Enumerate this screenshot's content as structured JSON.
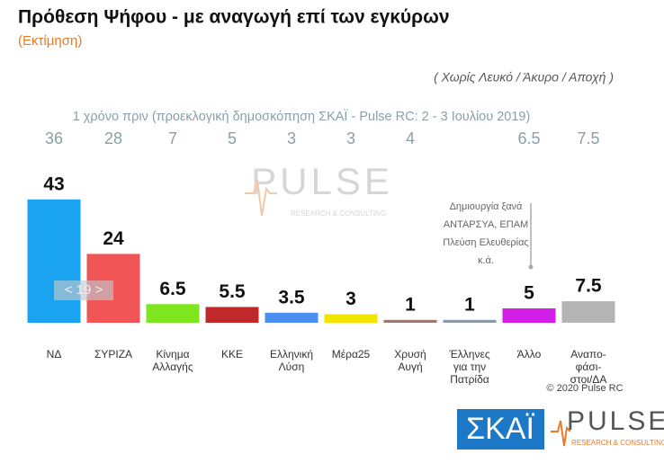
{
  "chart_data": {
    "type": "bar",
    "title": "Πρόθεση Ψήφου - με αναγωγή επί των εγκύρων",
    "subtitle": "(Εκτίμηση)",
    "note": "( Χωρίς Λευκό / Άκυρο / Αποχή )",
    "categories": [
      "ΝΔ",
      "ΣΥΡΙΖΑ",
      "Κίνημα\nΑλλαγής",
      "ΚΚΕ",
      "Ελληνική\nΛύση",
      "Μέρα25",
      "Χρυσή\nΑυγή",
      "Έλληνες\nγια την\nΠατρίδα",
      "Άλλο",
      "Αναπο-\nφάσι-\nστοι/ΔΑ"
    ],
    "values": [
      43,
      24,
      6.5,
      5.5,
      3.5,
      3,
      1,
      1,
      5,
      7.5
    ],
    "colors": [
      "#1aa3f0",
      "#f25555",
      "#7ee61e",
      "#c0282a",
      "#4a8ef0",
      "#f2e600",
      "#9a7a70",
      "#8a9aa8",
      "#d21ee6",
      "#b4b4b4"
    ],
    "previous_label": "1 χρόνο πριν (προεκλογική δημοσκόπηση ΣΚΑΪ - Pulse RC:  2 - 3 Ιουλίου 2019)",
    "previous_values": [
      36,
      28,
      7,
      5,
      3,
      3,
      4,
      null,
      6.5,
      7.5
    ],
    "annotation": "Δημιουργία ξανά\nΑΝΤΑΡΣΥΑ, ΕΠΑΜ\nΠλεύση Ελευθερίας\nκ.ά.",
    "overlay": "< 19 >",
    "copyright": "© 2020 Pulse RC",
    "logo_skai": "ΣΚΑΪ",
    "logo_pulse": "PULSE",
    "logo_pulse_sub": "RESEARCH & CONSULTING"
  }
}
